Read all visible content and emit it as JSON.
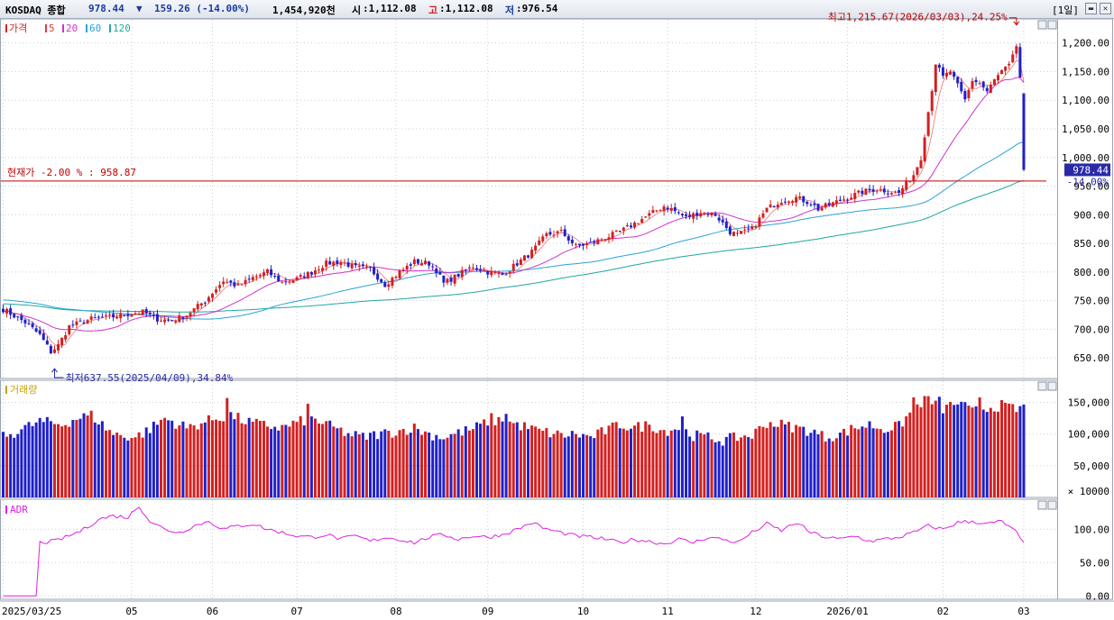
{
  "header": {
    "index_name": "KOSDAQ 종합",
    "price": "978.44",
    "change_arrow": "▼",
    "change": "159.26 (-14.00%)",
    "volume_text": "1,454,920천",
    "open_label": "시",
    "open_value": ":1,112.08",
    "high_label": "고",
    "high_value": ":1,112.08",
    "low_label": "저",
    "low_value": ":976.54",
    "period_button": "[1일]",
    "colors": {
      "up": "#d32020",
      "down": "#2020c8",
      "label_blue": "#1a3c9c"
    }
  },
  "chart_data": [
    {
      "type": "candlestick",
      "panel": "price",
      "legend": [
        {
          "label": "가격",
          "color": "#d32020"
        },
        {
          "label": "5",
          "color": "#e03a3a"
        },
        {
          "label": "20",
          "color": "#cc33cc"
        },
        {
          "label": "60",
          "color": "#2aa3d6"
        },
        {
          "label": "120",
          "color": "#1fa8a0"
        }
      ],
      "y_ticks": [
        "1,200.00",
        "1,150.00",
        "1,100.00",
        "1,050.00",
        "1,000.00",
        "950.00",
        "900.00",
        "850.00",
        "800.00",
        "750.00",
        "700.00",
        "650.00"
      ],
      "ylim": [
        614,
        1242
      ],
      "current_price_label": "978.44",
      "current_change_label": "-14.00%",
      "reference_line": {
        "label": "현재가 -2.00 % : 958.87",
        "value": 958.87
      },
      "annotations": {
        "high": "최고1,215.67(2026/03/03),24.25%",
        "low": "최저637.55(2025/04/09),34.84%"
      },
      "anchors_close": [
        [
          0,
          735
        ],
        [
          6,
          712
        ],
        [
          10,
          690
        ],
        [
          13,
          660
        ],
        [
          15,
          672
        ],
        [
          18,
          705
        ],
        [
          24,
          718
        ],
        [
          30,
          722
        ],
        [
          35,
          728
        ],
        [
          38,
          730
        ],
        [
          42,
          718
        ],
        [
          46,
          715
        ],
        [
          50,
          725
        ],
        [
          55,
          750
        ],
        [
          60,
          785
        ],
        [
          64,
          775
        ],
        [
          68,
          790
        ],
        [
          72,
          800
        ],
        [
          76,
          782
        ],
        [
          80,
          788
        ],
        [
          84,
          800
        ],
        [
          88,
          815
        ],
        [
          92,
          818
        ],
        [
          96,
          808
        ],
        [
          100,
          805
        ],
        [
          104,
          778
        ],
        [
          108,
          800
        ],
        [
          112,
          818
        ],
        [
          116,
          815
        ],
        [
          118,
          803
        ],
        [
          120,
          780
        ],
        [
          124,
          795
        ],
        [
          128,
          810
        ],
        [
          132,
          800
        ],
        [
          136,
          795
        ],
        [
          140,
          815
        ],
        [
          144,
          835
        ],
        [
          148,
          865
        ],
        [
          152,
          870
        ],
        [
          156,
          845
        ],
        [
          160,
          850
        ],
        [
          164,
          860
        ],
        [
          168,
          870
        ],
        [
          172,
          885
        ],
        [
          176,
          900
        ],
        [
          180,
          915
        ],
        [
          182,
          910
        ],
        [
          186,
          895
        ],
        [
          190,
          905
        ],
        [
          194,
          900
        ],
        [
          198,
          870
        ],
        [
          200,
          865
        ],
        [
          204,
          875
        ],
        [
          208,
          910
        ],
        [
          212,
          925
        ],
        [
          216,
          930
        ],
        [
          220,
          920
        ],
        [
          222,
          910
        ],
        [
          226,
          920
        ],
        [
          230,
          930
        ],
        [
          234,
          940
        ],
        [
          238,
          945
        ],
        [
          242,
          940
        ],
        [
          244,
          938
        ],
        [
          246,
          955
        ],
        [
          248,
          970
        ],
        [
          250,
          1000
        ],
        [
          251,
          1040
        ],
        [
          252,
          1080
        ],
        [
          253,
          1120
        ],
        [
          254,
          1165
        ],
        [
          256,
          1140
        ],
        [
          258,
          1150
        ],
        [
          260,
          1125
        ],
        [
          262,
          1100
        ],
        [
          264,
          1135
        ],
        [
          266,
          1130
        ],
        [
          268,
          1115
        ],
        [
          270,
          1135
        ],
        [
          272,
          1150
        ],
        [
          274,
          1160
        ],
        [
          275,
          1175
        ],
        [
          276,
          1195
        ],
        [
          277,
          1140
        ],
        [
          278,
          978
        ]
      ],
      "last_candle": {
        "open": 1112.08,
        "high": 1112.08,
        "low": 976.54,
        "close": 978.44
      }
    },
    {
      "type": "bar",
      "panel": "volume",
      "legend": "거래량",
      "y_ticks": [
        "150,000",
        "100,000",
        "50,000",
        "× 10000"
      ],
      "ylim": [
        0,
        185000
      ],
      "anchors_volume": [
        [
          0,
          95000
        ],
        [
          10,
          120000
        ],
        [
          16,
          115000
        ],
        [
          20,
          125000
        ],
        [
          24,
          130000
        ],
        [
          30,
          100000
        ],
        [
          36,
          95000
        ],
        [
          40,
          108000
        ],
        [
          44,
          125000
        ],
        [
          50,
          110000
        ],
        [
          58,
          125000
        ],
        [
          62,
          130000
        ],
        [
          66,
          120000
        ],
        [
          70,
          115000
        ],
        [
          76,
          110000
        ],
        [
          80,
          118000
        ],
        [
          84,
          125000
        ],
        [
          90,
          110000
        ],
        [
          94,
          100000
        ],
        [
          98,
          95000
        ],
        [
          102,
          100000
        ],
        [
          106,
          103000
        ],
        [
          112,
          110000
        ],
        [
          116,
          100000
        ],
        [
          120,
          95000
        ],
        [
          124,
          102000
        ],
        [
          128,
          108000
        ],
        [
          132,
          120000
        ],
        [
          136,
          122000
        ],
        [
          140,
          115000
        ],
        [
          146,
          105000
        ],
        [
          152,
          98000
        ],
        [
          156,
          100000
        ],
        [
          160,
          95000
        ],
        [
          164,
          105000
        ],
        [
          168,
          115000
        ],
        [
          172,
          110000
        ],
        [
          176,
          115000
        ],
        [
          180,
          105000
        ],
        [
          184,
          110000
        ],
        [
          188,
          98000
        ],
        [
          192,
          95000
        ],
        [
          196,
          90000
        ],
        [
          200,
          95000
        ],
        [
          204,
          98000
        ],
        [
          208,
          118000
        ],
        [
          212,
          115000
        ],
        [
          216,
          110000
        ],
        [
          220,
          105000
        ],
        [
          224,
          95000
        ],
        [
          228,
          100000
        ],
        [
          232,
          110000
        ],
        [
          236,
          115000
        ],
        [
          240,
          108000
        ],
        [
          244,
          112000
        ],
        [
          248,
          140000
        ],
        [
          250,
          150000
        ],
        [
          252,
          155000
        ],
        [
          256,
          140000
        ],
        [
          260,
          150000
        ],
        [
          264,
          135000
        ],
        [
          268,
          142000
        ],
        [
          272,
          145000
        ],
        [
          276,
          138000
        ],
        [
          278,
          145000
        ]
      ],
      "spikes": [
        [
          61,
          157000
        ],
        [
          83,
          148000
        ],
        [
          133,
          133000
        ],
        [
          137,
          132000
        ],
        [
          185,
          128000
        ],
        [
          248,
          158000
        ],
        [
          255,
          159000
        ],
        [
          266,
          158000
        ]
      ]
    },
    {
      "type": "line",
      "panel": "indicator",
      "legend": "ADR",
      "y_ticks": [
        "100.00",
        "50.00",
        "0.00"
      ],
      "ylim": [
        -5,
        145
      ],
      "anchors_adr": [
        [
          0,
          0
        ],
        [
          9,
          0
        ],
        [
          10,
          80
        ],
        [
          14,
          82
        ],
        [
          18,
          90
        ],
        [
          22,
          100
        ],
        [
          26,
          115
        ],
        [
          30,
          120
        ],
        [
          34,
          118
        ],
        [
          37,
          135
        ],
        [
          40,
          112
        ],
        [
          44,
          100
        ],
        [
          48,
          95
        ],
        [
          52,
          105
        ],
        [
          56,
          112
        ],
        [
          60,
          100
        ],
        [
          64,
          105
        ],
        [
          68,
          108
        ],
        [
          72,
          100
        ],
        [
          76,
          95
        ],
        [
          80,
          90
        ],
        [
          84,
          88
        ],
        [
          88,
          92
        ],
        [
          92,
          85
        ],
        [
          96,
          90
        ],
        [
          100,
          82
        ],
        [
          104,
          88
        ],
        [
          108,
          85
        ],
        [
          112,
          80
        ],
        [
          116,
          88
        ],
        [
          120,
          92
        ],
        [
          124,
          85
        ],
        [
          128,
          90
        ],
        [
          132,
          88
        ],
        [
          136,
          92
        ],
        [
          140,
          100
        ],
        [
          144,
          110
        ],
        [
          148,
          100
        ],
        [
          152,
          95
        ],
        [
          156,
          90
        ],
        [
          160,
          88
        ],
        [
          164,
          85
        ],
        [
          168,
          80
        ],
        [
          172,
          85
        ],
        [
          176,
          82
        ],
        [
          180,
          78
        ],
        [
          184,
          85
        ],
        [
          188,
          80
        ],
        [
          192,
          88
        ],
        [
          196,
          85
        ],
        [
          200,
          80
        ],
        [
          204,
          95
        ],
        [
          208,
          108
        ],
        [
          212,
          98
        ],
        [
          216,
          110
        ],
        [
          220,
          95
        ],
        [
          224,
          88
        ],
        [
          228,
          85
        ],
        [
          232,
          90
        ],
        [
          236,
          82
        ],
        [
          240,
          85
        ],
        [
          244,
          88
        ],
        [
          248,
          95
        ],
        [
          252,
          105
        ],
        [
          256,
          100
        ],
        [
          260,
          110
        ],
        [
          264,
          112
        ],
        [
          268,
          108
        ],
        [
          272,
          112
        ],
        [
          276,
          95
        ],
        [
          278,
          78
        ]
      ]
    }
  ],
  "panels": {
    "volume_title": "거래량",
    "indicator_title": "ADR"
  },
  "x_axis": {
    "labels": [
      "2025/03/25",
      "05",
      "06",
      "07",
      "08",
      "09",
      "10",
      "11",
      "12",
      "2026/01",
      "02",
      "03"
    ],
    "label_index": [
      0,
      35,
      57,
      80,
      107,
      132,
      158,
      181,
      205,
      230,
      256,
      278
    ]
  }
}
